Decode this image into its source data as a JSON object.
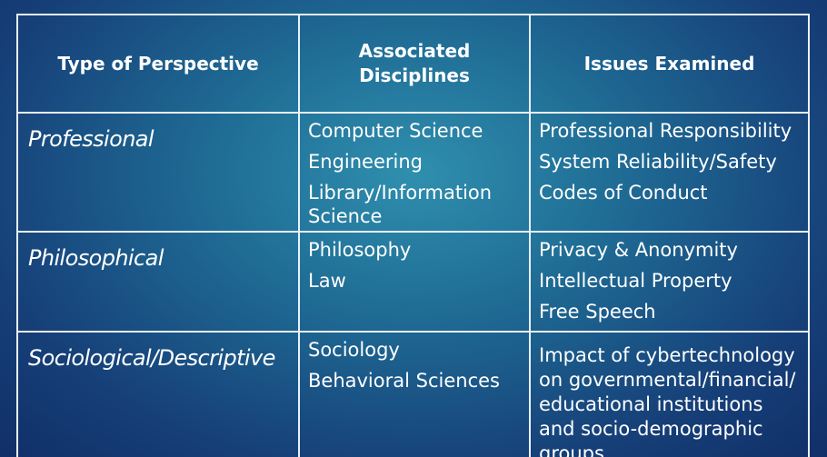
{
  "table": {
    "headers": [
      "Type of Perspective",
      "Associated Disciplines",
      "Issues Examined"
    ],
    "rows": [
      {
        "perspective": "Professional",
        "disciplines": [
          "Computer Science",
          "Engineering",
          "Library/Information Science"
        ],
        "issues": [
          "Professional Responsibility",
          "System Reliability/Safety",
          "Codes of Conduct"
        ]
      },
      {
        "perspective": "Philosophical",
        "disciplines": [
          "Philosophy",
          "Law"
        ],
        "issues": [
          "Privacy & Anonymity",
          "Intellectual Property",
          "Free Speech"
        ]
      },
      {
        "perspective": "Sociological/Descriptive",
        "disciplines": [
          "Sociology",
          "Behavioral Sciences"
        ],
        "issues": [
          "Impact of cybertechnology on governmental/financial/ educational institutions and socio-demographic groups"
        ]
      }
    ]
  },
  "colors": {
    "background_center": "#2f8fae",
    "background_edge": "#112f68",
    "border": "#e9f1f7",
    "text": "#ffffff"
  }
}
